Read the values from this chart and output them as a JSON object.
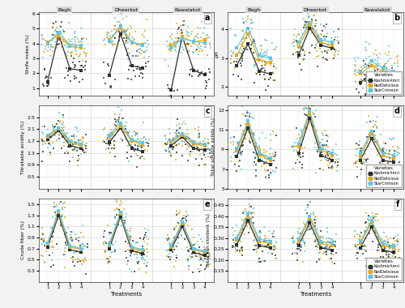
{
  "locations": [
    "Bagh",
    "Dheerkot",
    "Rawalakot"
  ],
  "treatments": [
    1,
    2,
    3,
    4
  ],
  "varieties": [
    "KashmirAmri",
    "RedDelicious",
    "StarCrimson"
  ],
  "colors": {
    "KashmirAmri": "#2d2d2d",
    "RedDelicious": "#e6a817",
    "StarCrimson": "#5bc8e8"
  },
  "panels": {
    "a": {
      "ylabel": "Strife index (%)",
      "label": "a",
      "ylim": [
        0.5,
        6.1
      ],
      "yticks": [
        1.0,
        2.0,
        3.0,
        4.0,
        5.0,
        6.0
      ],
      "means": {
        "Bagh": {
          "KashmirAmri": [
            1.4,
            4.6,
            2.3,
            2.2
          ],
          "RedDelicious": [
            4.1,
            4.55,
            3.8,
            3.7
          ],
          "StarCrimson": [
            4.0,
            4.75,
            3.9,
            3.85
          ]
        },
        "Dheerkot": {
          "KashmirAmri": [
            1.85,
            4.65,
            2.5,
            2.35
          ],
          "RedDelicious": [
            4.25,
            5.0,
            4.05,
            3.95
          ],
          "StarCrimson": [
            4.15,
            5.2,
            4.1,
            3.9
          ]
        },
        "Rawalakot": {
          "KashmirAmri": [
            0.85,
            4.5,
            2.2,
            1.9
          ],
          "RedDelicious": [
            3.85,
            4.45,
            4.1,
            4.25
          ],
          "StarCrimson": [
            3.7,
            4.3,
            4.15,
            4.05
          ]
        }
      },
      "scatter_std": 0.55,
      "n_scatter": 12
    },
    "b": {
      "ylabel": "pH",
      "label": "b",
      "ylim": [
        1.7,
        4.6
      ],
      "yticks": [
        2.0,
        3.0,
        4.0
      ],
      "means": {
        "Bagh": {
          "KashmirAmri": [
            2.75,
            3.5,
            2.55,
            2.45
          ],
          "RedDelicious": [
            3.1,
            3.85,
            2.95,
            2.85
          ],
          "StarCrimson": [
            3.35,
            4.05,
            3.1,
            3.0
          ]
        },
        "Dheerkot": {
          "KashmirAmri": [
            3.1,
            4.05,
            3.45,
            3.35
          ],
          "RedDelicious": [
            3.4,
            4.15,
            3.55,
            3.45
          ],
          "StarCrimson": [
            3.55,
            4.25,
            3.65,
            3.55
          ]
        },
        "Rawalakot": {
          "KashmirAmri": [
            2.15,
            2.45,
            2.25,
            2.15
          ],
          "RedDelicious": [
            2.45,
            2.75,
            2.55,
            2.45
          ],
          "StarCrimson": [
            2.55,
            2.9,
            2.65,
            2.55
          ]
        }
      },
      "scatter_std": 0.3,
      "n_scatter": 12,
      "legend": true
    },
    "c": {
      "ylabel": "Titratable acidity (%)",
      "label": "c",
      "ylim": [
        0.1,
        2.9
      ],
      "yticks": [
        0.5,
        0.9,
        1.3,
        1.7,
        2.1,
        2.5
      ],
      "means": {
        "Bagh": {
          "KashmirAmri": [
            1.75,
            2.05,
            1.55,
            1.45
          ],
          "RedDelicious": [
            1.85,
            2.1,
            1.65,
            1.55
          ],
          "StarCrimson": [
            1.9,
            2.15,
            1.7,
            1.6
          ]
        },
        "Dheerkot": {
          "KashmirAmri": [
            1.65,
            2.15,
            1.45,
            1.35
          ],
          "RedDelicious": [
            1.85,
            2.2,
            1.7,
            1.6
          ],
          "StarCrimson": [
            1.9,
            2.3,
            1.75,
            1.65
          ]
        },
        "Rawalakot": {
          "KashmirAmri": [
            1.55,
            1.85,
            1.45,
            1.4
          ],
          "RedDelicious": [
            1.65,
            1.9,
            1.6,
            1.55
          ],
          "StarCrimson": [
            1.7,
            1.95,
            1.65,
            1.6
          ]
        }
      },
      "scatter_std": 0.25,
      "n_scatter": 12
    },
    "d": {
      "ylabel": "Total soluble solids (%)",
      "label": "d",
      "ylim": [
        5.0,
        13.5
      ],
      "yticks": [
        5,
        7,
        9,
        11,
        13
      ],
      "means": {
        "Bagh": {
          "KashmirAmri": [
            8.3,
            11.2,
            7.9,
            7.5
          ],
          "RedDelicious": [
            8.9,
            11.6,
            8.5,
            7.9
          ],
          "StarCrimson": [
            9.1,
            11.9,
            8.7,
            8.1
          ]
        },
        "Dheerkot": {
          "KashmirAmri": [
            8.6,
            12.2,
            8.4,
            7.9
          ],
          "RedDelicious": [
            9.3,
            12.6,
            8.95,
            8.4
          ],
          "StarCrimson": [
            9.6,
            12.9,
            9.15,
            8.6
          ]
        },
        "Rawalakot": {
          "KashmirAmri": [
            7.9,
            10.1,
            7.9,
            7.7
          ],
          "RedDelicious": [
            8.3,
            10.6,
            8.4,
            8.1
          ],
          "StarCrimson": [
            8.6,
            10.9,
            8.65,
            8.4
          ]
        }
      },
      "scatter_std": 1.0,
      "n_scatter": 12,
      "legend": true
    },
    "e": {
      "ylabel": "Crude fiber (%)",
      "label": "e",
      "ylim": [
        0.1,
        1.6
      ],
      "yticks": [
        0.3,
        0.5,
        0.7,
        0.9,
        1.1,
        1.3,
        1.5
      ],
      "means": {
        "Bagh": {
          "KashmirAmri": [
            0.73,
            1.3,
            0.68,
            0.63
          ],
          "RedDelicious": [
            0.78,
            1.35,
            0.73,
            0.68
          ],
          "StarCrimson": [
            0.8,
            1.38,
            0.75,
            0.7
          ]
        },
        "Dheerkot": {
          "KashmirAmri": [
            0.7,
            1.28,
            0.66,
            0.61
          ],
          "RedDelicious": [
            0.76,
            1.32,
            0.71,
            0.66
          ],
          "StarCrimson": [
            0.78,
            1.35,
            0.73,
            0.68
          ]
        },
        "Rawalakot": {
          "KashmirAmri": [
            0.68,
            1.1,
            0.63,
            0.58
          ],
          "RedDelicious": [
            0.73,
            1.15,
            0.68,
            0.63
          ],
          "StarCrimson": [
            0.75,
            1.18,
            0.7,
            0.65
          ]
        }
      },
      "scatter_std": 0.18,
      "n_scatter": 12,
      "xlabel": "Treatments"
    },
    "f": {
      "ylabel": "Total ash content (%)",
      "label": "f",
      "ylim": [
        0.1,
        0.48
      ],
      "yticks": [
        0.15,
        0.2,
        0.25,
        0.3,
        0.35,
        0.4,
        0.45
      ],
      "means": {
        "Bagh": {
          "KashmirAmri": [
            0.27,
            0.38,
            0.265,
            0.255
          ],
          "RedDelicious": [
            0.29,
            0.4,
            0.285,
            0.275
          ],
          "StarCrimson": [
            0.3,
            0.41,
            0.295,
            0.285
          ]
        },
        "Dheerkot": {
          "KashmirAmri": [
            0.265,
            0.37,
            0.255,
            0.245
          ],
          "RedDelicious": [
            0.285,
            0.39,
            0.275,
            0.265
          ],
          "StarCrimson": [
            0.295,
            0.4,
            0.285,
            0.275
          ]
        },
        "Rawalakot": {
          "KashmirAmri": [
            0.255,
            0.35,
            0.245,
            0.235
          ],
          "RedDelicious": [
            0.275,
            0.37,
            0.265,
            0.255
          ],
          "StarCrimson": [
            0.285,
            0.38,
            0.275,
            0.265
          ]
        }
      },
      "scatter_std": 0.035,
      "n_scatter": 12,
      "legend": true,
      "xlabel": "Treatments"
    }
  },
  "bg_color": "#f2f2f2",
  "panel_bg": "#ffffff",
  "grid_color": "#d0d0d0",
  "loc_label_bg": "#d8d8d8"
}
